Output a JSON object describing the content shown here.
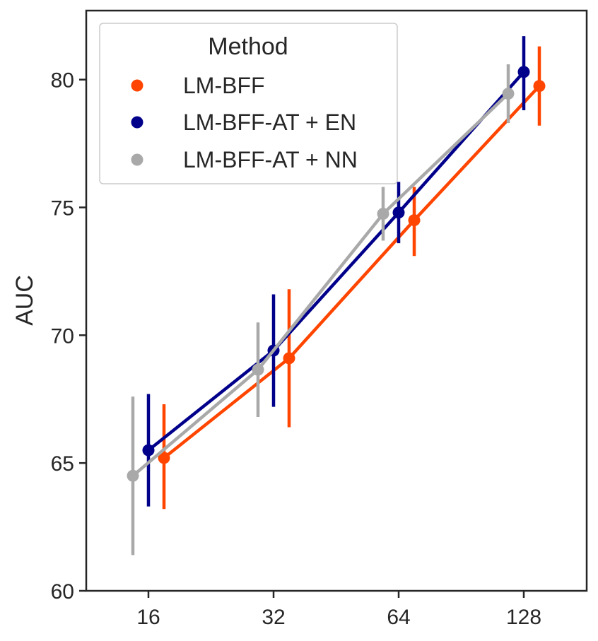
{
  "chart_data": {
    "type": "line",
    "categories": [
      "16",
      "32",
      "64",
      "128"
    ],
    "ylabel": "AUC",
    "xlabel": "",
    "ylim": [
      60,
      82.7
    ],
    "yticks": [
      60,
      65,
      70,
      75,
      80
    ],
    "grid": false,
    "legend": {
      "title": "Method",
      "placement": "top-left"
    },
    "series": [
      {
        "name": "LM-BFF",
        "color": "#ff4500",
        "values": [
          65.2,
          69.1,
          74.5,
          79.75
        ],
        "error_low": [
          63.2,
          66.4,
          73.1,
          78.2
        ],
        "error_high": [
          67.3,
          71.8,
          75.8,
          81.3
        ]
      },
      {
        "name": "LM-BFF-AT + EN",
        "color": "#00008b",
        "values": [
          65.5,
          69.4,
          74.8,
          80.3
        ],
        "error_low": [
          63.3,
          67.2,
          73.6,
          78.8
        ],
        "error_high": [
          67.7,
          71.6,
          76.0,
          81.7
        ]
      },
      {
        "name": "LM-BFF-AT + NN",
        "color": "#a9a9a9",
        "values": [
          64.5,
          68.65,
          74.75,
          79.45
        ],
        "error_low": [
          61.4,
          66.8,
          73.7,
          78.3
        ],
        "error_high": [
          67.6,
          70.5,
          75.8,
          80.6
        ]
      }
    ]
  }
}
